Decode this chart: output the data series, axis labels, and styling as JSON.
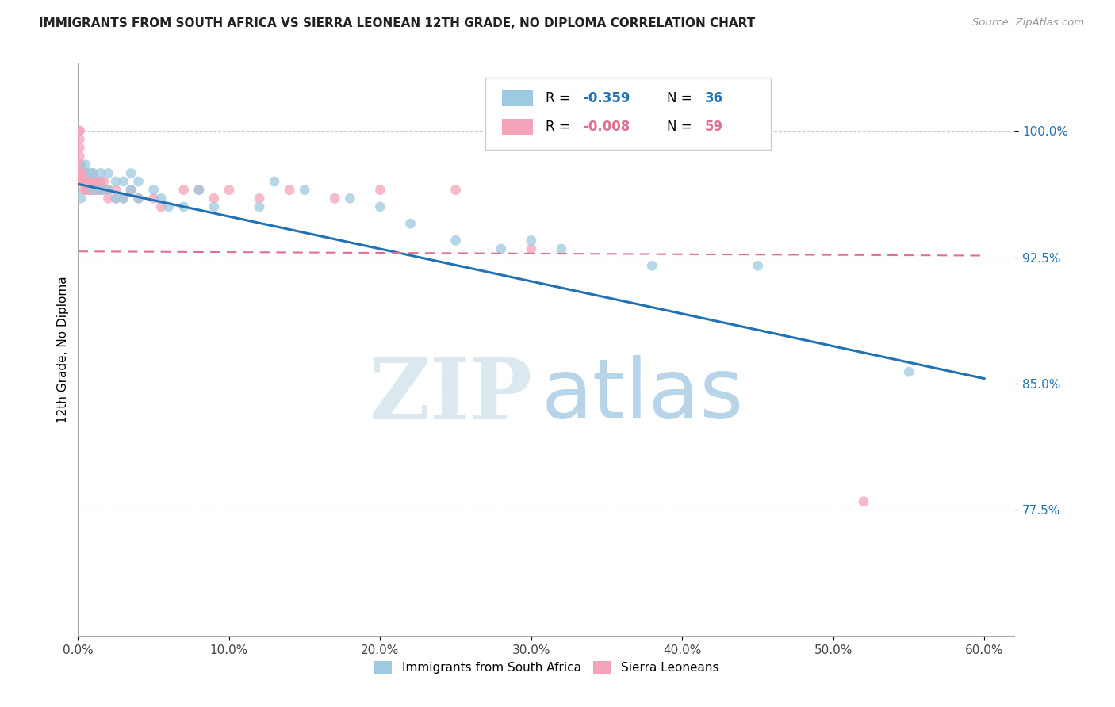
{
  "title": "IMMIGRANTS FROM SOUTH AFRICA VS SIERRA LEONEAN 12TH GRADE, NO DIPLOMA CORRELATION CHART",
  "source": "Source: ZipAtlas.com",
  "ylabel": "12th Grade, No Diploma",
  "ytick_values": [
    1.0,
    0.925,
    0.85,
    0.775
  ],
  "ytick_labels": [
    "100.0%",
    "92.5%",
    "85.0%",
    "77.5%"
  ],
  "xtick_values": [
    0.0,
    0.1,
    0.2,
    0.3,
    0.4,
    0.5,
    0.6
  ],
  "xtick_labels": [
    "0.0%",
    "10.0%",
    "20.0%",
    "30.0%",
    "40.0%",
    "50.0%",
    "60.0%"
  ],
  "xlim": [
    0.0,
    0.62
  ],
  "ylim": [
    0.7,
    1.04
  ],
  "blue_color": "#9ecae1",
  "pink_color": "#f4a3b8",
  "blue_line_color": "#2171b5",
  "pink_line_color": "#e07090",
  "title_color": "#222222",
  "source_color": "#999999",
  "legend_r1": "-0.359",
  "legend_n1": "36",
  "legend_r2": "-0.008",
  "legend_n2": "59",
  "blue_scatter_x": [
    0.002,
    0.005,
    0.008,
    0.01,
    0.01,
    0.015,
    0.015,
    0.02,
    0.02,
    0.025,
    0.025,
    0.03,
    0.03,
    0.035,
    0.035,
    0.04,
    0.04,
    0.05,
    0.055,
    0.06,
    0.07,
    0.08,
    0.09,
    0.12,
    0.13,
    0.15,
    0.18,
    0.2,
    0.22,
    0.25,
    0.28,
    0.3,
    0.32,
    0.38,
    0.45,
    0.55
  ],
  "blue_scatter_y": [
    0.96,
    0.98,
    0.975,
    0.975,
    0.965,
    0.975,
    0.965,
    0.975,
    0.965,
    0.97,
    0.96,
    0.97,
    0.96,
    0.975,
    0.965,
    0.97,
    0.96,
    0.965,
    0.96,
    0.955,
    0.955,
    0.965,
    0.955,
    0.955,
    0.97,
    0.965,
    0.96,
    0.955,
    0.945,
    0.935,
    0.93,
    0.935,
    0.93,
    0.92,
    0.92,
    0.857
  ],
  "pink_scatter_x": [
    0.001,
    0.001,
    0.001,
    0.001,
    0.001,
    0.001,
    0.001,
    0.001,
    0.002,
    0.002,
    0.002,
    0.003,
    0.003,
    0.004,
    0.004,
    0.004,
    0.005,
    0.005,
    0.005,
    0.006,
    0.006,
    0.006,
    0.007,
    0.007,
    0.008,
    0.008,
    0.009,
    0.009,
    0.01,
    0.01,
    0.01,
    0.012,
    0.012,
    0.013,
    0.013,
    0.015,
    0.015,
    0.017,
    0.017,
    0.02,
    0.02,
    0.025,
    0.025,
    0.03,
    0.035,
    0.04,
    0.05,
    0.055,
    0.07,
    0.08,
    0.09,
    0.1,
    0.12,
    0.14,
    0.17,
    0.2,
    0.25,
    0.3,
    0.52
  ],
  "pink_scatter_y": [
    1.0,
    1.0,
    0.995,
    0.99,
    0.985,
    0.98,
    0.975,
    0.97,
    0.98,
    0.975,
    0.97,
    0.975,
    0.97,
    0.975,
    0.97,
    0.965,
    0.975,
    0.97,
    0.965,
    0.975,
    0.97,
    0.965,
    0.97,
    0.965,
    0.97,
    0.965,
    0.97,
    0.965,
    0.975,
    0.97,
    0.965,
    0.97,
    0.965,
    0.97,
    0.965,
    0.97,
    0.965,
    0.97,
    0.965,
    0.965,
    0.96,
    0.965,
    0.96,
    0.96,
    0.965,
    0.96,
    0.96,
    0.955,
    0.965,
    0.965,
    0.96,
    0.965,
    0.96,
    0.965,
    0.96,
    0.965,
    0.965,
    0.93,
    0.78
  ],
  "blue_line_x": [
    0.0,
    0.6
  ],
  "blue_line_y": [
    0.9685,
    0.853
  ],
  "pink_line_x": [
    0.0,
    0.6
  ],
  "pink_line_y": [
    0.9285,
    0.926
  ]
}
